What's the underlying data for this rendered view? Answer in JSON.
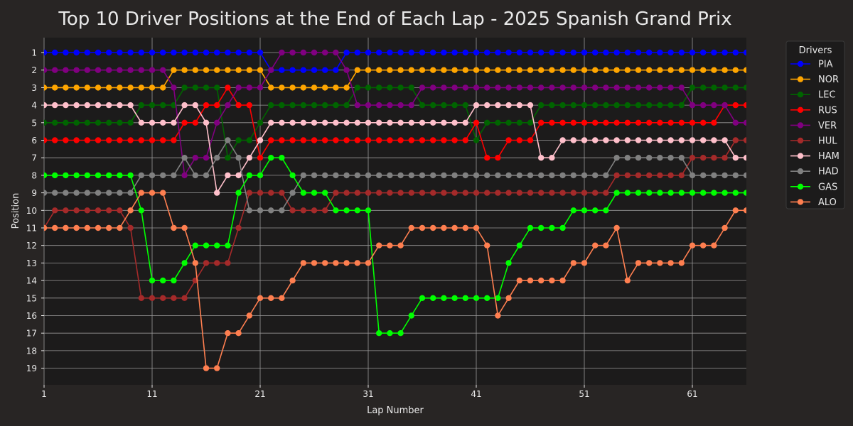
{
  "chart_data": {
    "type": "line",
    "title": "Top 10 Driver Positions at the End of Each Lap - 2025 Spanish Grand Prix",
    "xlabel": "Lap Number",
    "ylabel": "Position",
    "xlim": [
      1,
      66
    ],
    "ylim": [
      19,
      1
    ],
    "y_inverted": true,
    "x_ticks": [
      1,
      11,
      21,
      31,
      41,
      51,
      61
    ],
    "y_ticks": [
      1,
      2,
      3,
      4,
      5,
      6,
      7,
      8,
      9,
      10,
      11,
      12,
      13,
      14,
      15,
      16,
      17,
      18,
      19
    ],
    "grid": true,
    "legend": {
      "title": "Drivers",
      "placement": "right-outside"
    },
    "colors": {
      "background": "#282524",
      "plot_bg": "#1c1b1b",
      "grid": "#9a9a9a",
      "text": "#e8e8e8"
    },
    "series": [
      {
        "name": "PIA",
        "color": "#0000ff",
        "x_start": 1,
        "values": [
          1,
          1,
          1,
          1,
          1,
          1,
          1,
          1,
          1,
          1,
          1,
          1,
          1,
          1,
          1,
          1,
          1,
          1,
          1,
          1,
          1,
          2,
          2,
          2,
          2,
          2,
          2,
          2,
          1,
          1,
          1,
          1,
          1,
          1,
          1,
          1,
          1,
          1,
          1,
          1,
          1,
          1,
          1,
          1,
          1,
          1,
          1,
          1,
          1,
          1,
          1,
          1,
          1,
          1,
          1,
          1,
          1,
          1,
          1,
          1,
          1,
          1,
          1,
          1,
          1,
          1
        ]
      },
      {
        "name": "NOR",
        "color": "#ffa500",
        "x_start": 1,
        "values": [
          3,
          3,
          3,
          3,
          3,
          3,
          3,
          3,
          3,
          3,
          3,
          3,
          2,
          2,
          2,
          2,
          2,
          2,
          2,
          2,
          2,
          3,
          3,
          3,
          3,
          3,
          3,
          3,
          3,
          2,
          2,
          2,
          2,
          2,
          2,
          2,
          2,
          2,
          2,
          2,
          2,
          2,
          2,
          2,
          2,
          2,
          2,
          2,
          2,
          2,
          2,
          2,
          2,
          2,
          2,
          2,
          2,
          2,
          2,
          2,
          2,
          2,
          2,
          2,
          2,
          2
        ]
      },
      {
        "name": "LEC",
        "color": "#006400",
        "x_start": 1,
        "values": [
          5,
          5,
          5,
          5,
          5,
          5,
          5,
          5,
          5,
          4,
          4,
          4,
          4,
          3,
          3,
          3,
          3,
          7,
          6,
          6,
          5,
          4,
          4,
          4,
          4,
          4,
          4,
          4,
          4,
          3,
          3,
          3,
          3,
          3,
          3,
          4,
          4,
          4,
          4,
          4,
          6,
          5,
          5,
          5,
          5,
          5,
          4,
          4,
          4,
          4,
          4,
          4,
          4,
          4,
          4,
          4,
          4,
          4,
          4,
          4,
          3,
          3,
          3,
          3,
          3,
          3
        ]
      },
      {
        "name": "RUS",
        "color": "#ff0000",
        "x_start": 1,
        "values": [
          6,
          6,
          6,
          6,
          6,
          6,
          6,
          6,
          6,
          6,
          6,
          6,
          6,
          5,
          5,
          4,
          4,
          3,
          4,
          4,
          7,
          6,
          6,
          6,
          6,
          6,
          6,
          6,
          6,
          6,
          6,
          6,
          6,
          6,
          6,
          6,
          6,
          6,
          6,
          6,
          5,
          7,
          7,
          6,
          6,
          6,
          5,
          5,
          5,
          5,
          5,
          5,
          5,
          5,
          5,
          5,
          5,
          5,
          5,
          5,
          5,
          5,
          5,
          4,
          4,
          4
        ]
      },
      {
        "name": "VER",
        "color": "#800080",
        "x_start": 1,
        "values": [
          2,
          2,
          2,
          2,
          2,
          2,
          2,
          2,
          2,
          2,
          2,
          2,
          3,
          8,
          7,
          7,
          5,
          4,
          3,
          3,
          3,
          2,
          1,
          1,
          1,
          1,
          1,
          1,
          2,
          4,
          4,
          4,
          4,
          4,
          4,
          3,
          3,
          3,
          3,
          3,
          3,
          3,
          3,
          3,
          3,
          3,
          3,
          3,
          3,
          3,
          3,
          3,
          3,
          3,
          3,
          3,
          3,
          3,
          3,
          3,
          4,
          4,
          4,
          4,
          5,
          5
        ]
      },
      {
        "name": "HUL",
        "color": "#a52a2a",
        "x_start": 1,
        "values": [
          11,
          10,
          10,
          10,
          10,
          10,
          10,
          10,
          11,
          15,
          15,
          15,
          15,
          15,
          14,
          13,
          13,
          13,
          11,
          9,
          9,
          9,
          9,
          10,
          10,
          10,
          10,
          9,
          9,
          9,
          9,
          9,
          9,
          9,
          9,
          9,
          9,
          9,
          9,
          9,
          9,
          9,
          9,
          9,
          9,
          9,
          9,
          9,
          9,
          9,
          9,
          9,
          9,
          8,
          8,
          8,
          8,
          8,
          8,
          8,
          7,
          7,
          7,
          7,
          6,
          6
        ]
      },
      {
        "name": "HAM",
        "color": "#ffc0cb",
        "x_start": 1,
        "values": [
          4,
          4,
          4,
          4,
          4,
          4,
          4,
          4,
          4,
          5,
          5,
          5,
          5,
          4,
          4,
          5,
          9,
          8,
          8,
          7,
          6,
          5,
          5,
          5,
          5,
          5,
          5,
          5,
          5,
          5,
          5,
          5,
          5,
          5,
          5,
          5,
          5,
          5,
          5,
          5,
          4,
          4,
          4,
          4,
          4,
          4,
          7,
          7,
          6,
          6,
          6,
          6,
          6,
          6,
          6,
          6,
          6,
          6,
          6,
          6,
          6,
          6,
          6,
          6,
          7,
          7
        ]
      },
      {
        "name": "HAD",
        "color": "#808080",
        "x_start": 1,
        "values": [
          9,
          9,
          9,
          9,
          9,
          9,
          9,
          9,
          9,
          8,
          8,
          8,
          8,
          7,
          8,
          8,
          7,
          6,
          7,
          10,
          10,
          10,
          10,
          9,
          8,
          8,
          8,
          8,
          8,
          8,
          8,
          8,
          8,
          8,
          8,
          8,
          8,
          8,
          8,
          8,
          8,
          8,
          8,
          8,
          8,
          8,
          8,
          8,
          8,
          8,
          8,
          8,
          8,
          7,
          7,
          7,
          7,
          7,
          7,
          7,
          8,
          8,
          8,
          8,
          8,
          8
        ]
      },
      {
        "name": "GAS",
        "color": "#00ff00",
        "x_start": 1,
        "values": [
          8,
          8,
          8,
          8,
          8,
          8,
          8,
          8,
          8,
          10,
          14,
          14,
          14,
          13,
          12,
          12,
          12,
          12,
          9,
          8,
          8,
          7,
          7,
          8,
          9,
          9,
          9,
          10,
          10,
          10,
          10,
          17,
          17,
          17,
          16,
          15,
          15,
          15,
          15,
          15,
          15,
          15,
          15,
          13,
          12,
          11,
          11,
          11,
          11,
          10,
          10,
          10,
          10,
          9,
          9,
          9,
          9,
          9,
          9,
          9,
          9,
          9,
          9,
          9,
          9,
          9
        ]
      },
      {
        "name": "ALO",
        "color": "#ff7f50",
        "x_start": 0,
        "values": [
          10,
          11,
          11,
          11,
          11,
          11,
          11,
          11,
          11,
          10,
          9,
          9,
          9,
          11,
          11,
          13,
          19,
          19,
          17,
          17,
          16,
          15,
          15,
          15,
          14,
          13,
          13,
          13,
          13,
          13,
          13,
          13,
          12,
          12,
          12,
          11,
          11,
          11,
          11,
          11,
          11,
          11,
          12,
          16,
          15,
          14,
          14,
          14,
          14,
          14,
          13,
          13,
          12,
          12,
          11,
          14,
          13,
          13,
          13,
          13,
          13,
          12,
          12,
          12,
          11,
          10,
          10
        ]
      }
    ]
  }
}
